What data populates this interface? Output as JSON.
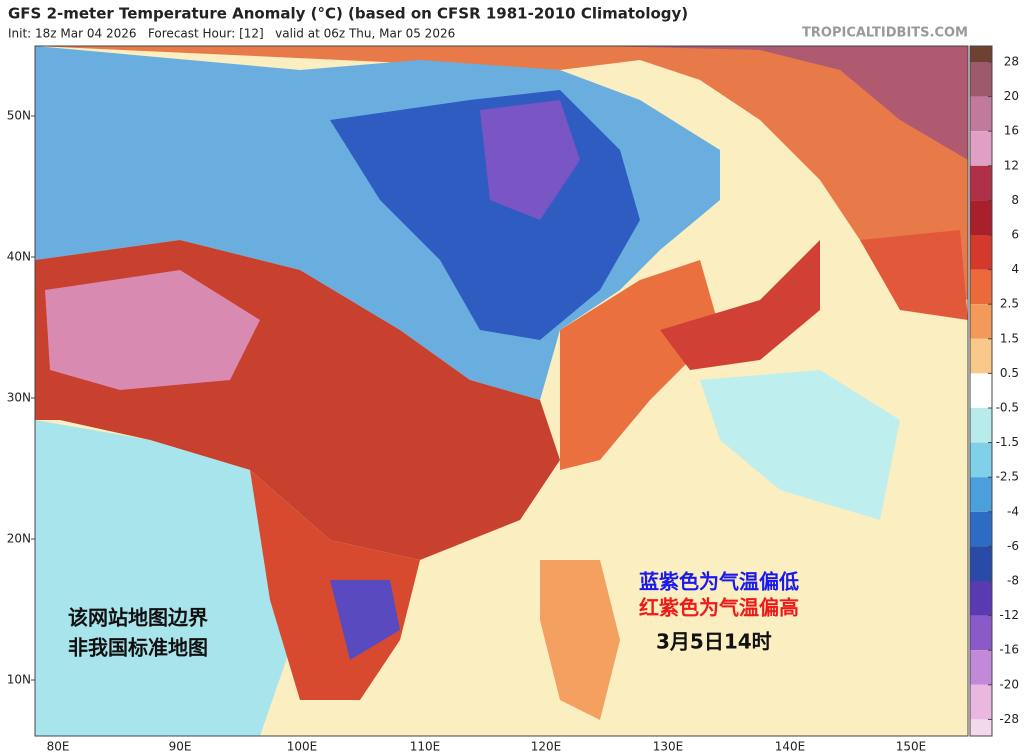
{
  "header": {
    "title": "GFS 2-meter Temperature Anomaly (°C) (based on CFSR 1981-2010 Climatology)",
    "subtitle": "Init: 18z Mar 04 2026   Forecast Hour: [12]   valid at 06z Thu, Mar 05 2026",
    "watermark": "TROPICALTIDBITS.COM"
  },
  "map": {
    "lat_labels": [
      "50N",
      "40N",
      "30N",
      "20N",
      "10N"
    ],
    "lon_labels": [
      "80E",
      "90E",
      "100E",
      "110E",
      "120E",
      "130E",
      "140E",
      "150E"
    ]
  },
  "annotations": {
    "legend_low": "蓝紫色为气温偏低",
    "legend_high": "红紫色为气温偏高",
    "time": "3月5日14时",
    "disclaimer": [
      "该网站地图边界",
      "非我国标准地图"
    ]
  },
  "colorbar": {
    "labels": [
      28,
      20,
      16,
      12,
      8,
      6,
      4,
      2.5,
      1.5,
      0.5,
      -0.5,
      -1.5,
      -2.5,
      -4,
      -6,
      -8,
      -12,
      -16,
      -20,
      -28
    ],
    "colors": [
      "#6e4232",
      "#9c5a6a",
      "#c27a9c",
      "#e0a0c4",
      "#b0304a",
      "#a8202a",
      "#d33a2c",
      "#ea6a3c",
      "#f39a5a",
      "#f8c98a",
      "#ffffff",
      "#b8ecec",
      "#7fd0e8",
      "#4ba0dc",
      "#2e6cc4",
      "#2a4aa8",
      "#5a3ab0",
      "#8a5ac8",
      "#c08ad8",
      "#e8b8e0",
      "#f4d8ec"
    ]
  }
}
